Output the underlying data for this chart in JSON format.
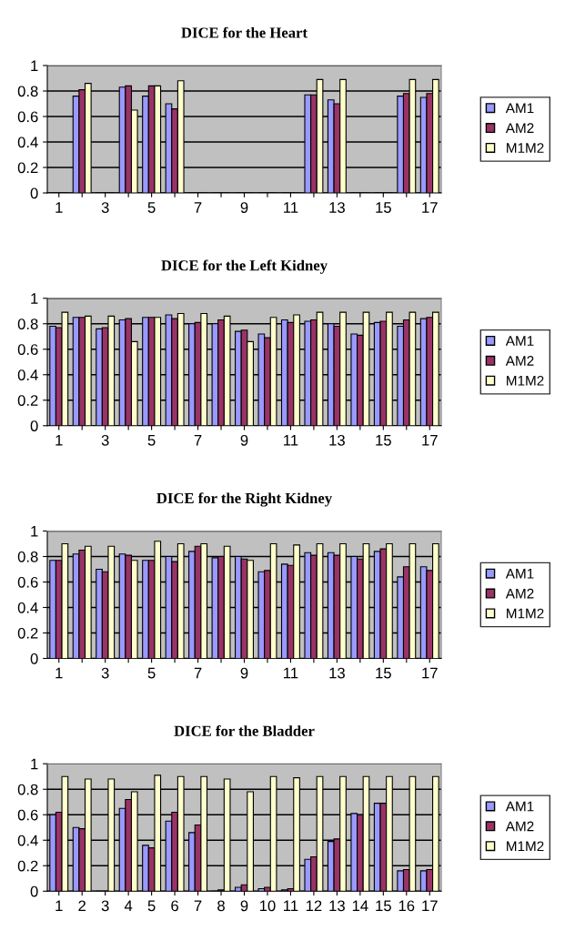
{
  "chart_data": [
    {
      "type": "bar",
      "title": "DICE for the Heart",
      "categories": [
        "1",
        null,
        "3",
        null,
        "5",
        null,
        "7",
        null,
        "9",
        null,
        "11",
        null,
        "13",
        null,
        "15",
        null,
        "17"
      ],
      "ylim": [
        0,
        1
      ],
      "yticks": [
        0,
        0.2,
        0.4,
        0.6,
        0.8,
        1
      ],
      "grid": "y",
      "legend": "right",
      "series": [
        {
          "name": "AM1",
          "color": "#9999ff",
          "values": [
            0,
            0.76,
            0,
            0.83,
            0.76,
            0.7,
            0,
            0,
            0,
            0,
            0,
            0.77,
            0.73,
            0,
            0,
            0.76,
            0.75
          ]
        },
        {
          "name": "AM2",
          "color": "#993366",
          "values": [
            0,
            0.81,
            0,
            0.84,
            0.84,
            0.66,
            0,
            0,
            0,
            0,
            0,
            0.77,
            0.7,
            0,
            0,
            0.78,
            0.78
          ]
        },
        {
          "name": "M1M2",
          "color": "#ffffcc",
          "values": [
            0,
            0.86,
            0,
            0.65,
            0.84,
            0.88,
            0,
            0,
            0,
            0,
            0,
            0.89,
            0.89,
            0,
            0,
            0.89,
            0.89
          ]
        }
      ]
    },
    {
      "type": "bar",
      "title": "DICE for the Left Kidney",
      "categories": [
        "1",
        null,
        "3",
        null,
        "5",
        null,
        "7",
        null,
        "9",
        null,
        "11",
        null,
        "13",
        null,
        "15",
        null,
        "17"
      ],
      "ylim": [
        0,
        1
      ],
      "yticks": [
        0,
        0.2,
        0.4,
        0.6,
        0.8,
        1
      ],
      "grid": "y",
      "legend": "right",
      "series": [
        {
          "name": "AM1",
          "color": "#9999ff",
          "values": [
            0.78,
            0.85,
            0.76,
            0.83,
            0.85,
            0.87,
            0.8,
            0.8,
            0.74,
            0.72,
            0.83,
            0.82,
            0.8,
            0.72,
            0.81,
            0.78,
            0.84
          ]
        },
        {
          "name": "AM2",
          "color": "#993366",
          "values": [
            0.77,
            0.85,
            0.77,
            0.84,
            0.85,
            0.84,
            0.81,
            0.83,
            0.75,
            0.69,
            0.81,
            0.83,
            0.78,
            0.71,
            0.82,
            0.83,
            0.85
          ]
        },
        {
          "name": "M1M2",
          "color": "#ffffcc",
          "values": [
            0.89,
            0.86,
            0.86,
            0.66,
            0.85,
            0.88,
            0.88,
            0.86,
            0.66,
            0.85,
            0.87,
            0.89,
            0.89,
            0.89,
            0.89,
            0.89,
            0.89
          ]
        }
      ]
    },
    {
      "type": "bar",
      "title": "DICE for the Right Kidney",
      "categories": [
        "1",
        null,
        "3",
        null,
        "5",
        null,
        "7",
        null,
        "9",
        null,
        "11",
        null,
        "13",
        null,
        "15",
        null,
        "17"
      ],
      "ylim": [
        0,
        1
      ],
      "yticks": [
        0,
        0.2,
        0.4,
        0.6,
        0.8,
        1
      ],
      "grid": "y",
      "legend": "right",
      "series": [
        {
          "name": "AM1",
          "color": "#9999ff",
          "values": [
            0.77,
            0.82,
            0.7,
            0.82,
            0.77,
            0.8,
            0.84,
            0.79,
            0.8,
            0.68,
            0.74,
            0.83,
            0.83,
            0.8,
            0.84,
            0.64,
            0.72
          ]
        },
        {
          "name": "AM2",
          "color": "#993366",
          "values": [
            0.77,
            0.85,
            0.68,
            0.81,
            0.77,
            0.76,
            0.88,
            0.8,
            0.78,
            0.69,
            0.73,
            0.81,
            0.81,
            0.78,
            0.86,
            0.72,
            0.69
          ]
        },
        {
          "name": "M1M2",
          "color": "#ffffcc",
          "values": [
            0.9,
            0.88,
            0.88,
            0.77,
            0.92,
            0.9,
            0.9,
            0.88,
            0.77,
            0.9,
            0.89,
            0.9,
            0.9,
            0.9,
            0.9,
            0.9,
            0.9
          ]
        }
      ]
    },
    {
      "type": "bar",
      "title": "DICE for the Bladder",
      "categories": [
        "1",
        "2",
        "3",
        "4",
        "5",
        "6",
        "7",
        "8",
        "9",
        "10",
        "11",
        "12",
        "13",
        "14",
        "15",
        "16",
        "17"
      ],
      "ylim": [
        0,
        1
      ],
      "yticks": [
        0,
        0.2,
        0.4,
        0.6,
        0.8,
        1
      ],
      "grid": "y",
      "legend": "right",
      "series": [
        {
          "name": "AM1",
          "color": "#9999ff",
          "values": [
            0.6,
            0.5,
            0,
            0.65,
            0.36,
            0.55,
            0.46,
            0,
            0.03,
            0.02,
            0.01,
            0.25,
            0.39,
            0.61,
            0.69,
            0.16,
            0.16
          ]
        },
        {
          "name": "AM2",
          "color": "#993366",
          "values": [
            0.62,
            0.49,
            0,
            0.72,
            0.34,
            0.62,
            0.52,
            0.01,
            0.05,
            0.03,
            0.02,
            0.27,
            0.41,
            0.6,
            0.69,
            0.17,
            0.17
          ]
        },
        {
          "name": "M1M2",
          "color": "#ffffcc",
          "values": [
            0.9,
            0.88,
            0.88,
            0.78,
            0.91,
            0.9,
            0.9,
            0.88,
            0.78,
            0.9,
            0.89,
            0.9,
            0.9,
            0.9,
            0.9,
            0.9,
            0.9
          ]
        }
      ]
    }
  ]
}
